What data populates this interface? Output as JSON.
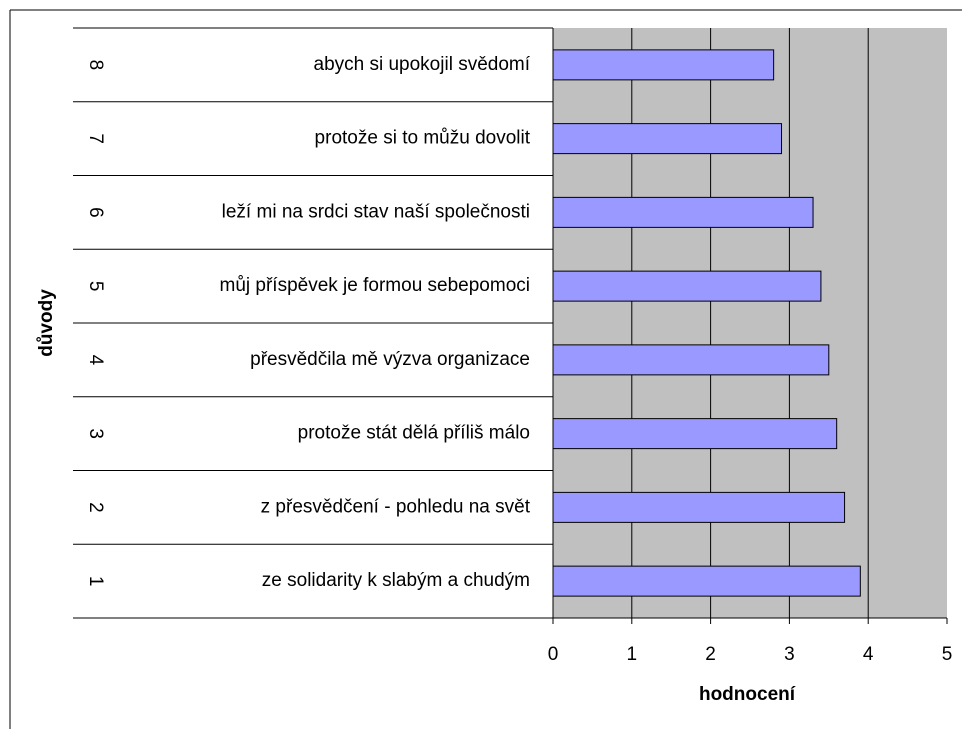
{
  "chart_data": {
    "type": "bar",
    "orientation": "horizontal",
    "groups": [
      "1",
      "2",
      "3",
      "4",
      "5",
      "6",
      "7",
      "8"
    ],
    "categories": [
      "ze solidarity k slabým a chudým",
      "z přesvědčení - pohledu na svět",
      "protože stát dělá příliš málo",
      "přesvědčila mě výzva organizace",
      "můj příspěvek je formou sebepomoci",
      "leží mi na srdci stav naší společnosti",
      "protože si to můžu dovolit",
      "abych si upokojil svědomí"
    ],
    "values": [
      3.9,
      3.7,
      3.6,
      3.5,
      3.4,
      3.3,
      2.9,
      2.8
    ],
    "color": "#9999ff",
    "xlabel": "hodnocení",
    "ylabel": "důvody",
    "xlim": [
      0,
      5
    ],
    "xticks": [
      0,
      1,
      2,
      3,
      4,
      5
    ],
    "grid": true
  }
}
